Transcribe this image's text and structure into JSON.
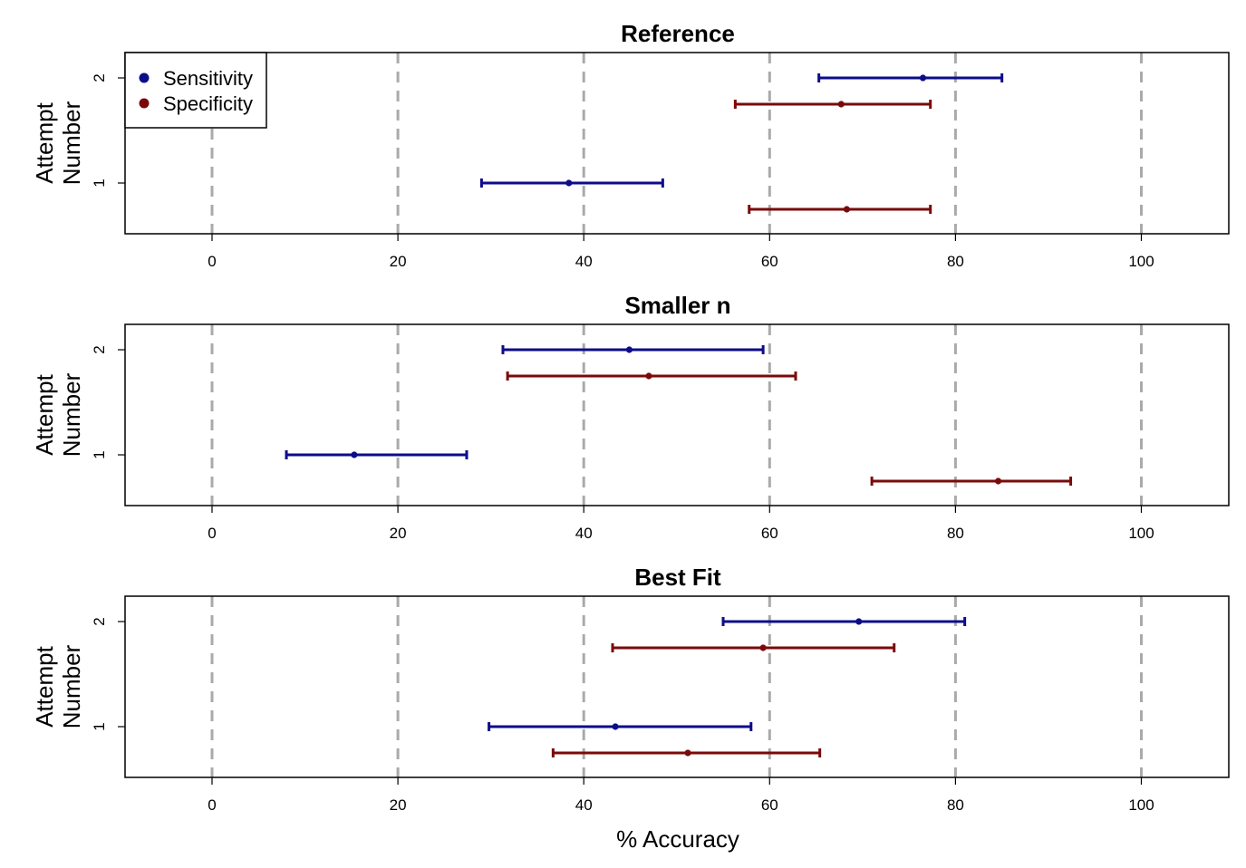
{
  "chart_data": {
    "type": "interval",
    "colors": {
      "Sensitivity": "#0d0d8a",
      "Specificity": "#7a0a0a",
      "grid": "#aaaaaa"
    },
    "legend": {
      "placement": "top-left",
      "items": [
        {
          "label": "Sensitivity",
          "color": "#0d0d8a"
        },
        {
          "label": "Specificity",
          "color": "#7a0a0a"
        }
      ]
    },
    "shared": {
      "xlabel": "% Accuracy",
      "ylabel": [
        "Attempt",
        "Number"
      ],
      "xlim": [
        -9,
        110
      ],
      "xticks": [
        0,
        20,
        40,
        60,
        80,
        100
      ],
      "yticks": [
        1,
        2
      ],
      "grid": "vertical dashed at x ticks"
    },
    "panels": [
      {
        "title": "Reference",
        "series": [
          {
            "name": "Sensitivity",
            "points": [
              {
                "y": 2,
                "x": 76.5,
                "lo": 65.3,
                "hi": 85.0
              },
              {
                "y": 1,
                "x": 38.4,
                "lo": 29.0,
                "hi": 48.5
              }
            ]
          },
          {
            "name": "Specificity",
            "points": [
              {
                "y": 2,
                "x": 67.7,
                "lo": 56.3,
                "hi": 77.3
              },
              {
                "y": 1,
                "x": 68.3,
                "lo": 57.8,
                "hi": 77.3
              }
            ]
          }
        ]
      },
      {
        "title": "Smaller n",
        "series": [
          {
            "name": "Sensitivity",
            "points": [
              {
                "y": 2,
                "x": 44.9,
                "lo": 31.3,
                "hi": 59.3
              },
              {
                "y": 1,
                "x": 15.3,
                "lo": 8.0,
                "hi": 27.4
              }
            ]
          },
          {
            "name": "Specificity",
            "points": [
              {
                "y": 2,
                "x": 47.0,
                "lo": 31.8,
                "hi": 62.8
              },
              {
                "y": 1,
                "x": 84.6,
                "lo": 71.0,
                "hi": 92.4
              }
            ]
          }
        ]
      },
      {
        "title": "Best Fit",
        "series": [
          {
            "name": "Sensitivity",
            "points": [
              {
                "y": 2,
                "x": 69.6,
                "lo": 55.0,
                "hi": 81.0
              },
              {
                "y": 1,
                "x": 43.4,
                "lo": 29.8,
                "hi": 58.0
              }
            ]
          },
          {
            "name": "Specificity",
            "points": [
              {
                "y": 2,
                "x": 59.3,
                "lo": 43.1,
                "hi": 73.4
              },
              {
                "y": 1,
                "x": 51.2,
                "lo": 36.7,
                "hi": 65.4
              }
            ]
          }
        ]
      }
    ]
  }
}
